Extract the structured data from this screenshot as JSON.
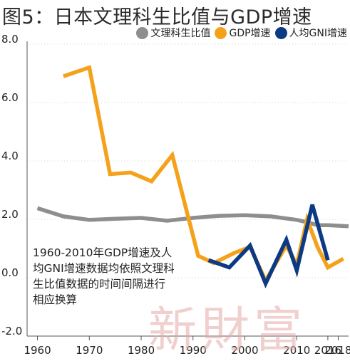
{
  "title": "图5：日本文理科生比值与GDP增速",
  "note": "1960-2010年GDP增速及人均GNI增速数据均依照文理科生比值数据的时间间隔进行相应换算",
  "watermark": "新財富",
  "colors": {
    "gray": "#8e8e8e",
    "orange": "#f5a21b",
    "navy": "#0c3a84"
  },
  "chart_data": {
    "type": "line",
    "title": "图5：日本文理科生比值与GDP增速",
    "xlabel": "",
    "ylabel": "",
    "xlim": [
      1958,
      2020
    ],
    "ylim": [
      -2.0,
      8.0
    ],
    "grid": {
      "horizontal": true,
      "vertical": false
    },
    "legend_position": "top-right",
    "x_ticks": [
      1960,
      1970,
      1980,
      1990,
      2000,
      2010,
      2016,
      2018
    ],
    "x_tick_labels": [
      "1960",
      "1970",
      "1980",
      "1990",
      "2000",
      "2010",
      "2016",
      "2018"
    ],
    "y_ticks": [
      -2.0,
      0.0,
      2.0,
      4.0,
      6.0,
      8.0
    ],
    "y_tick_labels": [
      "-2.0",
      "0.0",
      "2.0",
      "4.0",
      "6.0",
      "8.0"
    ],
    "series": [
      {
        "name": "文理科生比值",
        "color": "#8e8e8e",
        "points": [
          [
            1960,
            2.38
          ],
          [
            1965,
            2.1
          ],
          [
            1970,
            1.98
          ],
          [
            1975,
            2.02
          ],
          [
            1980,
            2.05
          ],
          [
            1985,
            1.95
          ],
          [
            1990,
            2.05
          ],
          [
            1995,
            2.12
          ],
          [
            2000,
            2.14
          ],
          [
            2005,
            2.1
          ],
          [
            2010,
            1.98
          ],
          [
            2012,
            1.9
          ],
          [
            2014,
            1.8
          ],
          [
            2016,
            1.8
          ],
          [
            2018,
            1.78
          ],
          [
            2020,
            1.76
          ]
        ]
      },
      {
        "name": "GDP增速",
        "color": "#f5a21b",
        "points": [
          [
            1965,
            6.9
          ],
          [
            1970,
            7.2
          ],
          [
            1974,
            3.55
          ],
          [
            1978,
            3.6
          ],
          [
            1982,
            3.3
          ],
          [
            1986,
            4.2
          ],
          [
            1991,
            0.75
          ],
          [
            1994,
            0.5
          ],
          [
            1998,
            0.85
          ],
          [
            2001,
            1.05
          ],
          [
            2004,
            -0.1
          ],
          [
            2008,
            1.1
          ],
          [
            2010,
            0.45
          ],
          [
            2012,
            2.0
          ],
          [
            2014,
            1.05
          ],
          [
            2016,
            0.35
          ],
          [
            2019,
            0.65
          ]
        ]
      },
      {
        "name": "人均GNI增速",
        "color": "#0c3a84",
        "points": [
          [
            1993,
            0.6
          ],
          [
            1997,
            0.35
          ],
          [
            2001,
            1.1
          ],
          [
            2004,
            -0.2
          ],
          [
            2008,
            1.3
          ],
          [
            2010,
            0.25
          ],
          [
            2013,
            2.5
          ],
          [
            2016,
            0.6
          ]
        ]
      }
    ]
  }
}
